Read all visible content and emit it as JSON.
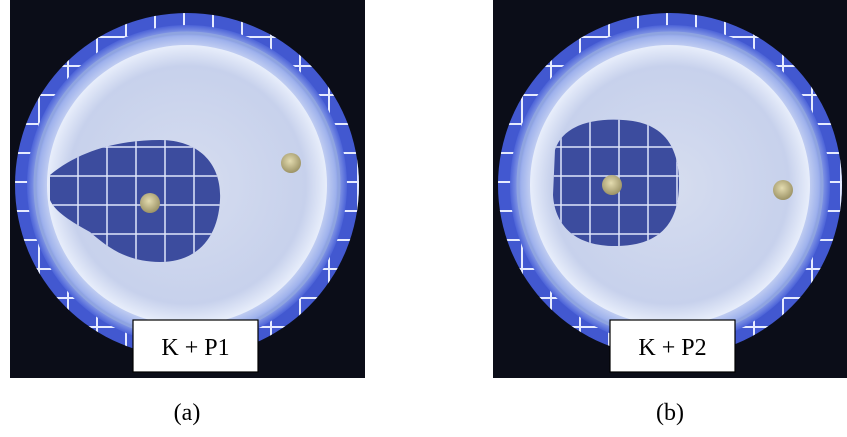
{
  "panels": [
    {
      "label": "K + P1",
      "caption": "(a)"
    },
    {
      "label": "K + P2",
      "caption": "(b)"
    }
  ]
}
